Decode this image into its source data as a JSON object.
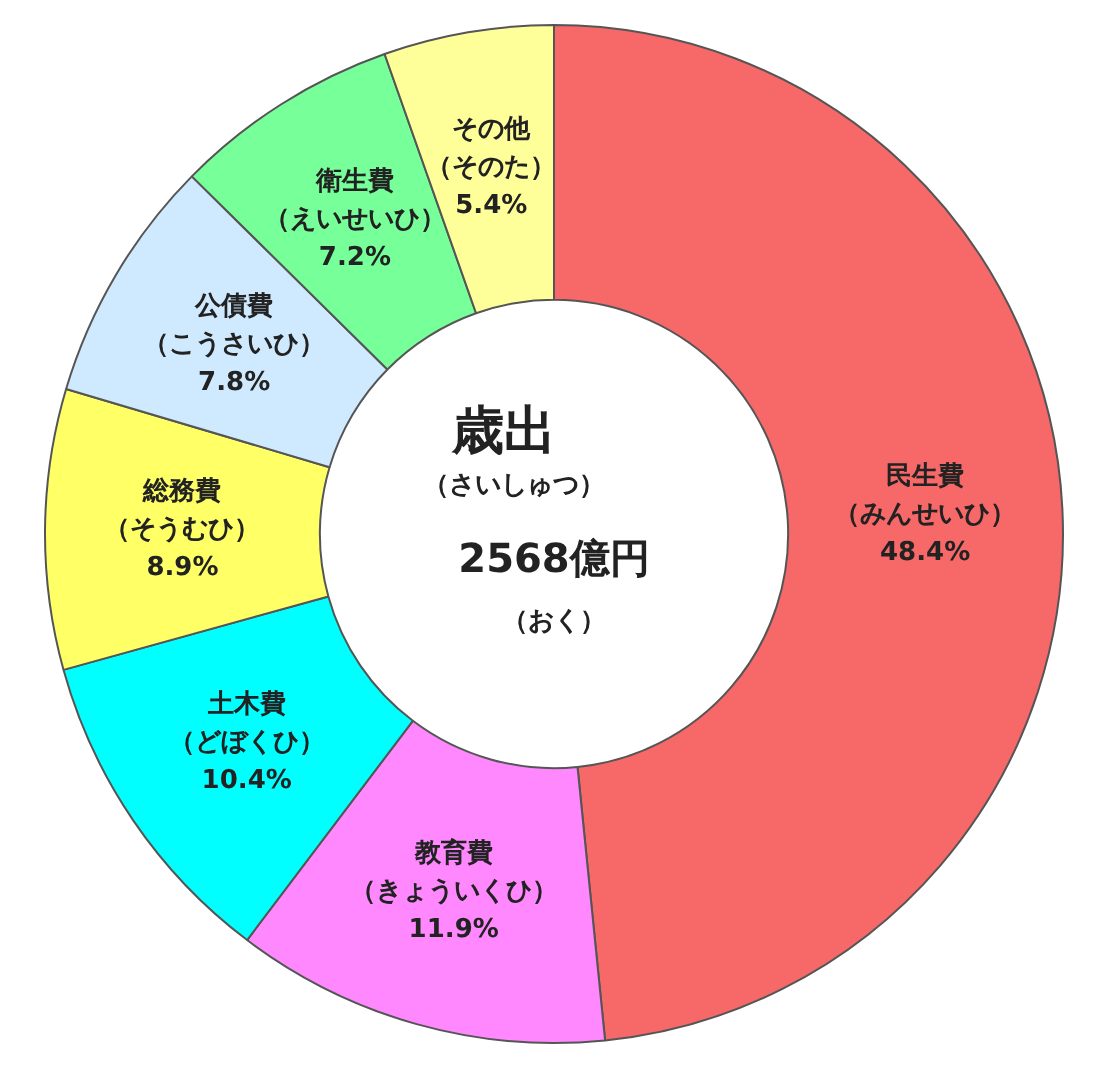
{
  "chart_data": {
    "type": "donut",
    "title": "歳出",
    "subtitle": "（さいしゅつ）",
    "annotations": [
      "2568億円",
      "（おく）"
    ],
    "categories": [
      "民生費（みんせいひ）",
      "教育費（きょういくひ）",
      "土木費（どぼくひ）",
      "総務費（そうむひ）",
      "公債費（こうさいひ）",
      "衛生費（えいせいひ）",
      "その他（そのた）"
    ],
    "values": [
      48.4,
      11.9,
      10.4,
      8.9,
      7.8,
      7.2,
      5.4
    ],
    "value_labels": [
      "48.4%",
      "11.9%",
      "10.4%",
      "8.9%",
      "7.8%",
      "7.2%",
      "5.4%"
    ],
    "colors": [
      "#f76868",
      "#ff88ff",
      "#00ffff",
      "#ffff66",
      "#cfeaff",
      "#77ff99",
      "#ffff99"
    ],
    "legend": false
  }
}
